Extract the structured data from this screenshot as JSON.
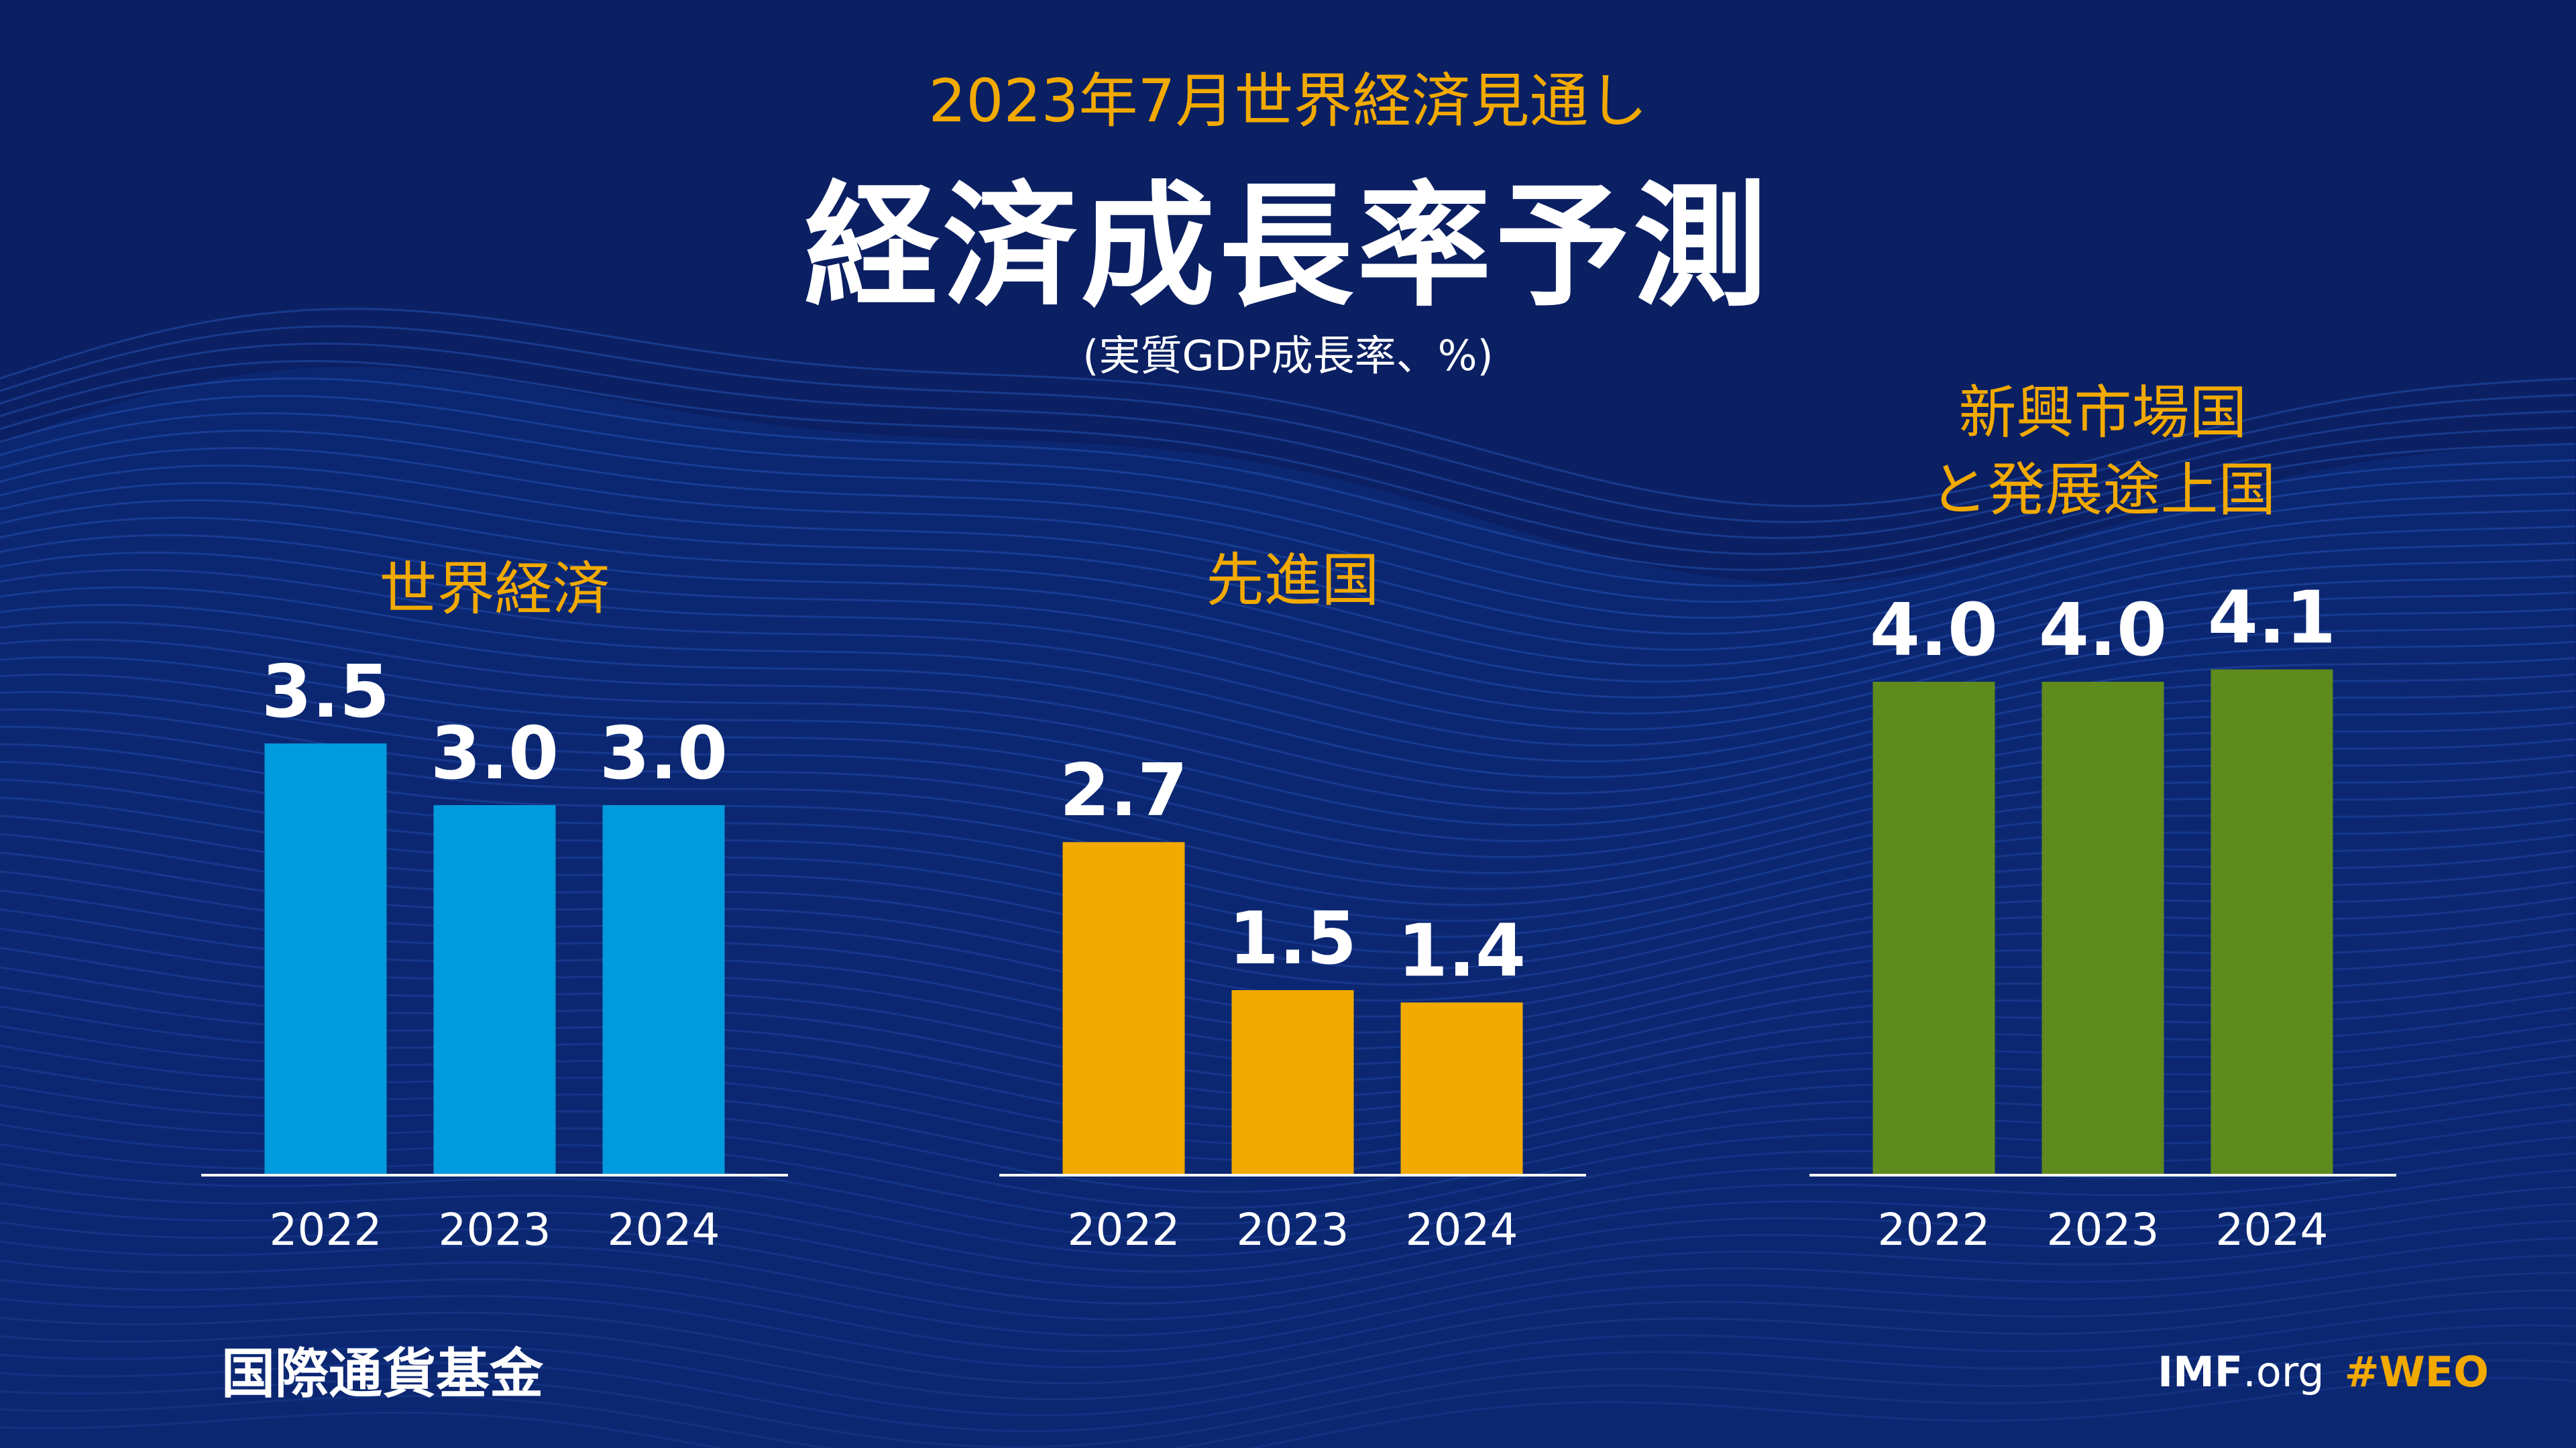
{
  "header": {
    "subtitle": "2023年7月世界経済見通し",
    "title": "経済成長率予測",
    "unit": "(実質GDP成長率、%)"
  },
  "footer": {
    "org": "国際通貨基金",
    "site_bold": "IMF",
    "site_rest": ".org",
    "hashtag": "#WEO"
  },
  "colors": {
    "background": "#0b2063",
    "wave_light": "#1b4aa6",
    "world": "#009ade",
    "advanced": "#f2a900",
    "emerging": "#5f8a1e",
    "label_gold": "#f2a900",
    "text_white": "#ffffff"
  },
  "chart_data": [
    {
      "type": "bar",
      "title": "世界経済",
      "categories": [
        "2022",
        "2023",
        "2024"
      ],
      "values": [
        3.5,
        3.0,
        3.0
      ],
      "value_labels": [
        "3.5",
        "3.0",
        "3.0"
      ],
      "color": "#009ade"
    },
    {
      "type": "bar",
      "title": "先進国",
      "categories": [
        "2022",
        "2023",
        "2024"
      ],
      "values": [
        2.7,
        1.5,
        1.4
      ],
      "value_labels": [
        "2.7",
        "1.5",
        "1.4"
      ],
      "color": "#f2a900"
    },
    {
      "type": "bar",
      "title": [
        "新興市場国",
        "と発展途上国"
      ],
      "categories": [
        "2022",
        "2023",
        "2024"
      ],
      "values": [
        4.0,
        4.0,
        4.1
      ],
      "value_labels": [
        "4.0",
        "4.0",
        "4.1"
      ],
      "color": "#5f8a1e"
    }
  ]
}
